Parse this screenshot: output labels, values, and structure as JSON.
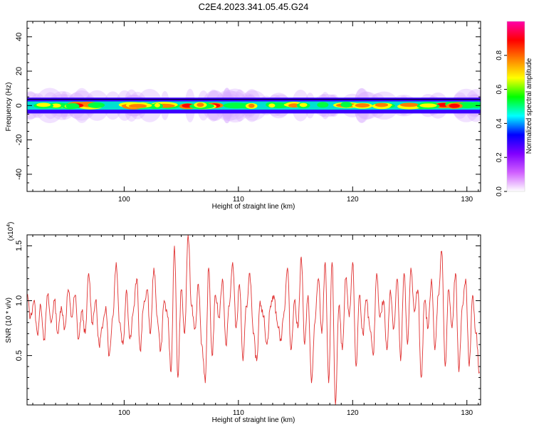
{
  "title": "C2E4.2023.341.05.45.G24",
  "chart_data": [
    {
      "type": "heatmap",
      "xlabel": "Height of straight line (km)",
      "ylabel": "Frequency (Hz)",
      "xlim": [
        91.5,
        131.2
      ],
      "ylim": [
        -50,
        49
      ],
      "x_ticks": [
        100,
        110,
        120,
        130
      ],
      "y_ticks": [
        -40,
        -20,
        0,
        20,
        40
      ],
      "band_center_hz": 0,
      "band_halfwidth_hz": 4,
      "colorbar": {
        "label": "Normalized spectral amplitude",
        "range": [
          0,
          1
        ],
        "ticks": [
          0.0,
          0.2,
          0.4,
          0.6,
          0.8
        ],
        "colormap": [
          "#ffffff",
          "#d060ff",
          "#8000ff",
          "#0000ff",
          "#00ffff",
          "#00ff00",
          "#ffff00",
          "#ff8000",
          "#ff0000",
          "#ff00aa"
        ]
      }
    },
    {
      "type": "line",
      "xlabel": "Height of straight line (km)",
      "ylabel": "SNR (10 * v/v)",
      "y_multiplier_label": "(x10",
      "y_multiplier_exp": "4",
      "y_multiplier_close": ")",
      "xlim": [
        91.5,
        131.2
      ],
      "ylim": [
        0.05,
        1.6
      ],
      "x_ticks": [
        100,
        110,
        120,
        130
      ],
      "y_ticks": [
        0.5,
        1.0,
        1.5
      ],
      "y_tick_labels": [
        "0.5",
        "1.0",
        "1.5"
      ],
      "line_color": "#e03030",
      "series": [
        {
          "x": [
            91.5,
            91.8,
            92.1,
            92.4,
            92.7,
            93.0,
            93.3,
            93.6,
            93.9,
            94.2,
            94.5,
            94.8,
            95.1,
            95.4,
            95.7,
            96.0,
            96.3,
            96.6,
            96.9,
            97.2,
            97.5,
            97.8,
            98.1,
            98.4,
            98.7,
            99.0,
            99.3,
            99.6,
            99.9,
            100.2,
            100.5,
            100.8,
            101.1,
            101.4,
            101.7,
            102.0,
            102.3,
            102.6,
            102.9,
            103.2,
            103.5,
            103.8,
            104.1,
            104.4,
            104.7,
            105.0,
            105.3,
            105.6,
            105.9,
            106.2,
            106.5,
            106.8,
            107.1,
            107.4,
            107.7,
            108.0,
            108.3,
            108.6,
            108.9,
            109.2,
            109.5,
            109.8,
            110.1,
            110.4,
            110.7,
            111.0,
            111.3,
            111.6,
            111.9,
            112.2,
            112.5,
            112.8,
            113.1,
            113.4,
            113.7,
            114.0,
            114.3,
            114.6,
            114.9,
            115.2,
            115.5,
            115.8,
            116.1,
            116.4,
            116.7,
            117.0,
            117.3,
            117.6,
            117.9,
            118.2,
            118.5,
            118.8,
            119.1,
            119.4,
            119.7,
            120.0,
            120.3,
            120.6,
            120.9,
            121.2,
            121.5,
            121.8,
            122.1,
            122.4,
            122.7,
            123.0,
            123.3,
            123.6,
            123.9,
            124.2,
            124.5,
            124.8,
            125.1,
            125.4,
            125.7,
            126.0,
            126.3,
            126.6,
            126.9,
            127.2,
            127.5,
            127.8,
            128.1,
            128.4,
            128.7,
            129.0,
            129.3,
            129.6,
            129.9,
            130.2,
            130.5,
            130.8,
            131.1
          ],
          "values": [
            1.05,
            0.85,
            1.0,
            0.7,
            0.95,
            0.65,
            1.05,
            0.8,
            1.0,
            0.7,
            0.95,
            0.75,
            1.1,
            0.85,
            1.05,
            0.65,
            0.9,
            0.7,
            1.25,
            0.8,
            1.0,
            0.6,
            0.75,
            0.95,
            0.5,
            0.85,
            1.35,
            0.8,
            0.6,
            1.1,
            0.65,
            0.9,
            1.2,
            0.55,
            0.95,
            1.1,
            0.7,
            1.3,
            0.85,
            0.55,
            1.0,
            0.85,
            0.35,
            1.5,
            0.3,
            1.1,
            0.7,
            1.6,
            0.95,
            0.75,
            1.15,
            0.6,
            0.25,
            1.3,
            0.5,
            1.05,
            0.85,
            1.2,
            0.6,
            0.95,
            1.35,
            0.75,
            1.15,
            0.45,
            0.95,
            1.25,
            0.7,
            0.45,
            1.0,
            0.85,
            0.6,
            0.95,
            1.05,
            0.8,
            0.65,
            0.9,
            1.3,
            0.55,
            1.0,
            0.75,
            1.4,
            0.6,
            1.05,
            0.25,
            0.8,
            1.2,
            0.7,
            1.35,
            0.25,
            1.35,
            0.05,
            0.95,
            0.55,
            1.2,
            0.85,
            1.35,
            0.4,
            1.05,
            0.7,
            1.0,
            0.75,
            0.5,
            1.25,
            0.85,
            1.0,
            0.55,
            1.1,
            0.75,
            1.2,
            0.45,
            1.25,
            0.6,
            1.3,
            0.9,
            1.1,
            0.3,
            1.0,
            0.75,
            1.2,
            0.55,
            1.05,
            1.45,
            0.4,
            1.1,
            0.75,
            1.25,
            0.35,
            0.95,
            1.2,
            0.4,
            1.05,
            0.7,
            0.35
          ]
        }
      ]
    }
  ]
}
